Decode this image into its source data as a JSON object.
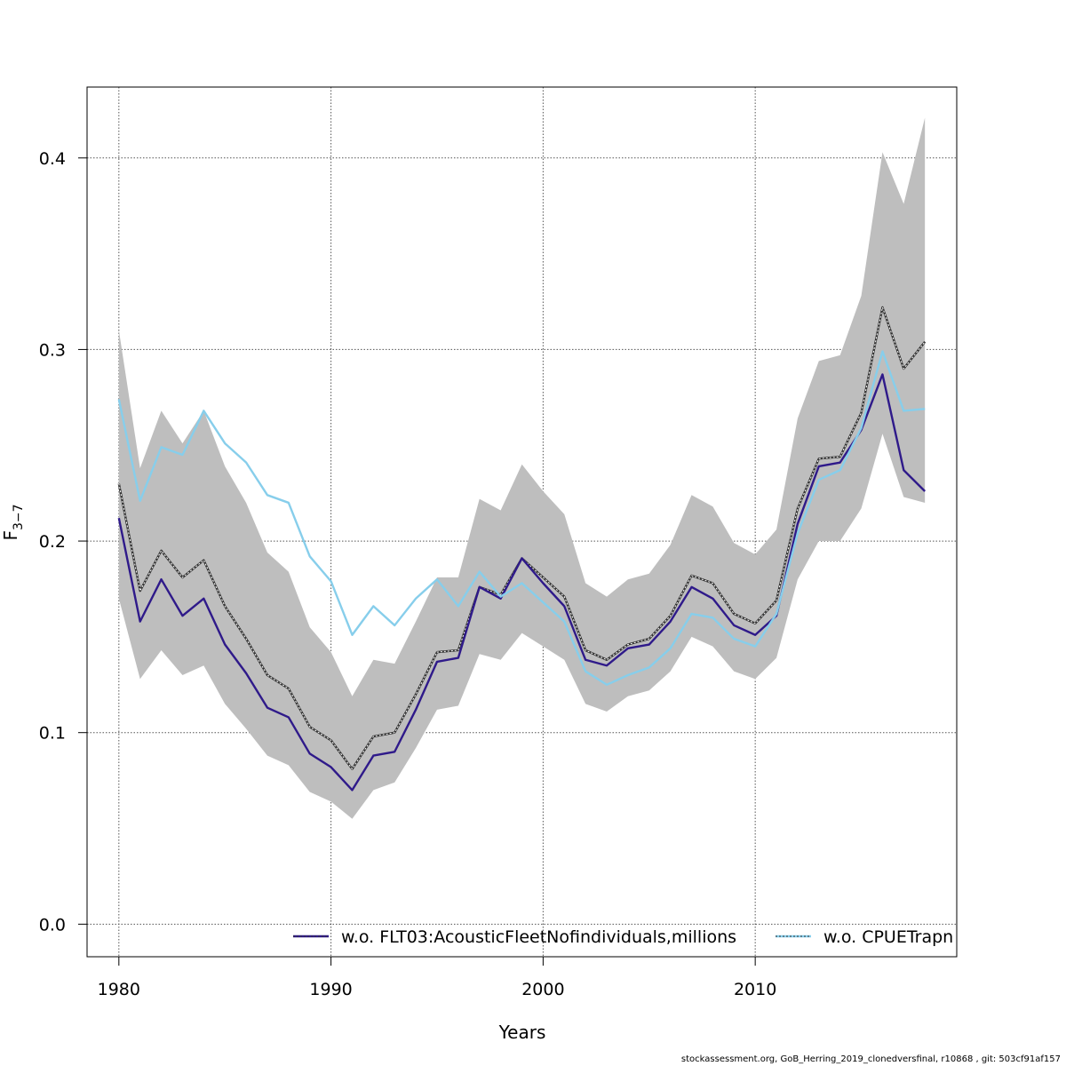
{
  "chart_data": {
    "type": "line",
    "xlabel": "Years",
    "ylabel": "F",
    "ylabel_sub": "3−7",
    "xlim": [
      1978.5,
      2019.5
    ],
    "ylim": [
      -0.017,
      0.437
    ],
    "xticks": [
      1980,
      1990,
      2000,
      2010
    ],
    "yticks": [
      0.0,
      0.1,
      0.2,
      0.3,
      0.4
    ],
    "ytick_labels": [
      "0.0",
      "0.1",
      "0.2",
      "0.3",
      "0.4"
    ],
    "grid": true,
    "legend_position": "bottom",
    "x": [
      1980,
      1981,
      1982,
      1983,
      1984,
      1985,
      1986,
      1987,
      1988,
      1989,
      1990,
      1991,
      1992,
      1993,
      1994,
      1995,
      1996,
      1997,
      1998,
      1999,
      2000,
      2001,
      2002,
      2003,
      2004,
      2005,
      2006,
      2007,
      2008,
      2009,
      2010,
      2011,
      2012,
      2013,
      2014,
      2015,
      2016,
      2017,
      2018
    ],
    "band": {
      "color": "#bebebe",
      "upper": [
        0.31,
        0.238,
        0.268,
        0.251,
        0.268,
        0.239,
        0.22,
        0.194,
        0.184,
        0.155,
        0.142,
        0.119,
        0.138,
        0.136,
        0.158,
        0.181,
        0.181,
        0.222,
        0.216,
        0.24,
        0.226,
        0.214,
        0.178,
        0.171,
        0.18,
        0.183,
        0.198,
        0.224,
        0.218,
        0.199,
        0.193,
        0.206,
        0.264,
        0.294,
        0.297,
        0.328,
        0.403,
        0.376,
        0.421
      ],
      "lower": [
        0.17,
        0.128,
        0.143,
        0.13,
        0.135,
        0.115,
        0.102,
        0.088,
        0.083,
        0.069,
        0.064,
        0.055,
        0.07,
        0.074,
        0.092,
        0.112,
        0.114,
        0.141,
        0.138,
        0.152,
        0.145,
        0.138,
        0.115,
        0.111,
        0.119,
        0.122,
        0.132,
        0.15,
        0.145,
        0.132,
        0.128,
        0.139,
        0.18,
        0.2,
        0.2,
        0.217,
        0.256,
        0.223,
        0.22
      ]
    },
    "series": [
      {
        "color": "#333333",
        "dashed_overlay": true,
        "values": [
          0.23,
          0.174,
          0.195,
          0.181,
          0.19,
          0.166,
          0.149,
          0.13,
          0.123,
          0.103,
          0.096,
          0.081,
          0.098,
          0.1,
          0.12,
          0.142,
          0.143,
          0.176,
          0.172,
          0.191,
          0.181,
          0.171,
          0.143,
          0.138,
          0.146,
          0.149,
          0.161,
          0.182,
          0.178,
          0.162,
          0.157,
          0.169,
          0.217,
          0.243,
          0.244,
          0.267,
          0.322,
          0.29,
          0.304
        ]
      },
      {
        "name": "w.o. FLT03:AcousticFleetNofindividuals,millions",
        "color": "#2f1a8a",
        "values": [
          0.212,
          0.158,
          0.18,
          0.161,
          0.17,
          0.146,
          0.131,
          0.113,
          0.108,
          0.089,
          0.082,
          0.07,
          0.088,
          0.09,
          0.112,
          0.137,
          0.139,
          0.176,
          0.17,
          0.191,
          0.178,
          0.166,
          0.138,
          0.135,
          0.144,
          0.146,
          0.158,
          0.176,
          0.17,
          0.156,
          0.151,
          0.161,
          0.209,
          0.239,
          0.241,
          0.258,
          0.287,
          0.237,
          0.226
        ]
      },
      {
        "name": "w.o. CPUETrapn",
        "color": "#87ceeb",
        "values": [
          0.274,
          0.221,
          0.249,
          0.245,
          0.268,
          0.251,
          0.241,
          0.224,
          0.22,
          0.192,
          0.179,
          0.151,
          0.166,
          0.156,
          0.17,
          0.18,
          0.166,
          0.184,
          0.171,
          0.178,
          0.168,
          0.158,
          0.132,
          0.125,
          0.13,
          0.134,
          0.144,
          0.162,
          0.16,
          0.149,
          0.145,
          0.162,
          0.204,
          0.232,
          0.237,
          0.259,
          0.299,
          0.268,
          0.269
        ]
      }
    ]
  },
  "footer_text": "stockassessment.org, GoB_Herring_2019_clonedversfinal, r10868 , git: 503cf91af157"
}
